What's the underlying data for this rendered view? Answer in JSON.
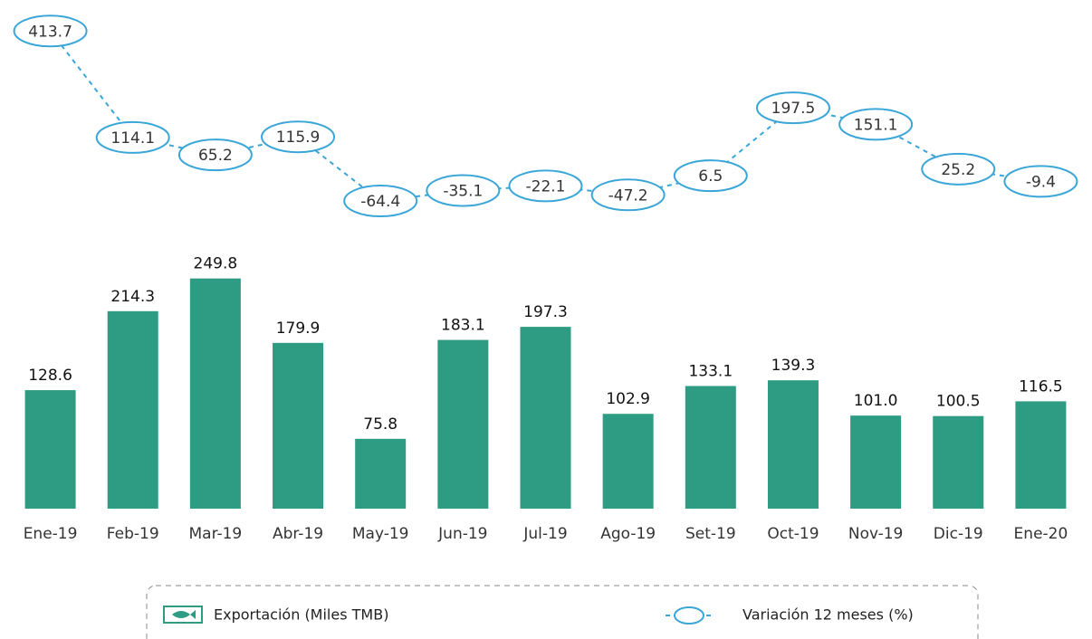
{
  "chart_data": {
    "type": "bar",
    "categories": [
      "Ene-19",
      "Feb-19",
      "Mar-19",
      "Abr-19",
      "May-19",
      "Jun-19",
      "Jul-19",
      "Ago-19",
      "Set-19",
      "Oct-19",
      "Nov-19",
      "Dic-19",
      "Ene-20"
    ],
    "ylim": [
      0,
      275
    ],
    "y2lim": [
      -100,
      450
    ],
    "series": [
      {
        "name": "Exportación (Miles TMB)",
        "type": "bar",
        "color": "#2e9c82",
        "values": [
          128.6,
          214.3,
          249.8,
          179.9,
          75.8,
          183.1,
          197.3,
          102.9,
          133.1,
          139.3,
          101.0,
          100.5,
          116.5
        ],
        "value_labels": [
          "128.6",
          "214.3",
          "249.8",
          "179.9",
          "75.8",
          "183.1",
          "197.3",
          "102.9",
          "133.1",
          "139.3",
          "101.0",
          "100.5",
          "116.5"
        ]
      },
      {
        "name": "Variación 12 meses (%)",
        "type": "line",
        "axis": "y2",
        "color": "#3aa6d8",
        "values": [
          413.7,
          114.1,
          65.2,
          115.9,
          -64.4,
          -35.1,
          -22.1,
          -47.2,
          6.5,
          197.5,
          151.1,
          25.2,
          -9.4
        ]
      }
    ]
  }
}
